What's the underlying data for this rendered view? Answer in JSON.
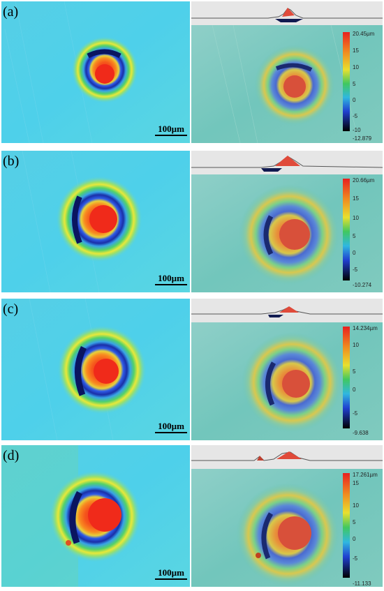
{
  "colors": {
    "background_cyan": "#4fd0e8",
    "ring_yellow": "#e8e83a",
    "ring_green": "#52d26a",
    "core_red": "#f02a1a",
    "core_orange": "#f88a20",
    "trench_dark": "#0a1560",
    "trench_blue": "#2f5ce8",
    "render_teal": "#6fc6b8"
  },
  "icons": {
    "left_image": "laser-crater-false-color-map",
    "right_image": "laser-crater-3d-rendered-surface",
    "profile": "cross-section-height-profile"
  },
  "panels": [
    {
      "label": "(a)",
      "scale": "100µm",
      "colorbar": {
        "max": "20.45µm",
        "ticks": [
          "15",
          "10",
          "5",
          "0",
          "-5",
          "-10"
        ],
        "min": "-12.879"
      }
    },
    {
      "label": "(b)",
      "scale": "100µm",
      "colorbar": {
        "max": "20.66µm",
        "ticks": [
          "15",
          "10",
          "5",
          "0",
          "-5"
        ],
        "min": "-10.274"
      }
    },
    {
      "label": "(c)",
      "scale": "100µm",
      "colorbar": {
        "max": "14.234µm",
        "ticks": [
          "10",
          "5",
          "0",
          "-5"
        ],
        "min": "-9.638"
      }
    },
    {
      "label": "(d)",
      "scale": "100µm",
      "colorbar": {
        "max": "17.261µm",
        "ticks": [
          "15",
          "10",
          "5",
          "0",
          "-5"
        ],
        "min": "-11.133"
      }
    }
  ]
}
